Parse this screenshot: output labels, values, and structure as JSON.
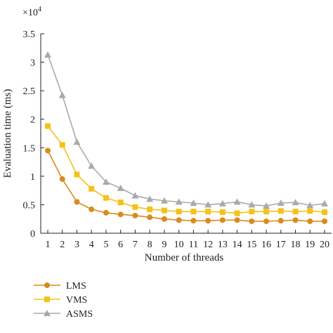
{
  "chart_data": {
    "type": "line",
    "title": "",
    "xlabel": "Number of threads",
    "ylabel": "Evaluation time (ms)",
    "y_multiplier": {
      "base": "×10",
      "exponent": "4"
    },
    "x": [
      1,
      2,
      3,
      4,
      5,
      6,
      7,
      8,
      9,
      10,
      11,
      12,
      13,
      14,
      15,
      16,
      17,
      18,
      19,
      20
    ],
    "xlim": [
      1,
      20
    ],
    "ylim": [
      0,
      3.5
    ],
    "yticks": [
      "0",
      "0.5",
      "1",
      "1.5",
      "2",
      "2.5",
      "3",
      "3.5"
    ],
    "grid": false,
    "legend_position": "bottom-left",
    "series": [
      {
        "name": "LMS",
        "color": "#d98b1e",
        "marker": "circle",
        "values": [
          1.45,
          0.95,
          0.55,
          0.42,
          0.36,
          0.33,
          0.31,
          0.28,
          0.25,
          0.23,
          0.22,
          0.22,
          0.23,
          0.23,
          0.21,
          0.21,
          0.22,
          0.23,
          0.21,
          0.21
        ]
      },
      {
        "name": "VMS",
        "color": "#f5c21b",
        "marker": "square",
        "values": [
          1.88,
          1.55,
          1.03,
          0.78,
          0.62,
          0.54,
          0.46,
          0.42,
          0.4,
          0.38,
          0.38,
          0.38,
          0.37,
          0.35,
          0.38,
          0.38,
          0.39,
          0.38,
          0.39,
          0.37
        ]
      },
      {
        "name": "ASMS",
        "color": "#aaaaaa",
        "marker": "triangle",
        "values": [
          3.13,
          2.42,
          1.6,
          1.18,
          0.9,
          0.79,
          0.66,
          0.6,
          0.57,
          0.55,
          0.53,
          0.5,
          0.52,
          0.55,
          0.5,
          0.48,
          0.53,
          0.54,
          0.49,
          0.52
        ]
      }
    ]
  }
}
